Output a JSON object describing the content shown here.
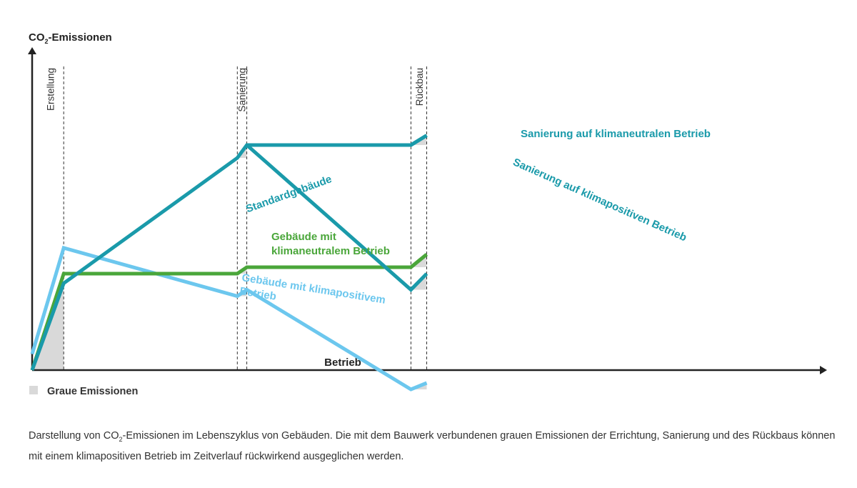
{
  "chart_data": {
    "type": "line",
    "ylabel_pre": "CO",
    "ylabel_sub": "2",
    "ylabel_post": "-Emissionen",
    "xlabel": "Betrieb",
    "phases": [
      "Erstellung",
      "Sanierung",
      "Rückbau"
    ],
    "legend": "Graue Emissionen",
    "colors": {
      "standard": "#1a9aaa",
      "neutral": "#4aa63a",
      "positive": "#6cc7ee",
      "grey": "#d9d9d9",
      "axis": "#222222"
    },
    "series": [
      {
        "name": "Standardgebäude",
        "color": "#1a9aaa",
        "x": [
          0,
          1,
          6.5,
          6.8,
          12,
          12.5
        ],
        "y": [
          0,
          2.7,
          6.6,
          7.0,
          7.0,
          7.3
        ]
      },
      {
        "name": "Sanierung auf klimaneutralen Betrieb",
        "color": "#1a9aaa",
        "x": [
          6.8,
          12,
          12.5
        ],
        "y": [
          7.0,
          7.0,
          7.3
        ]
      },
      {
        "name": "Sanierung auf klimapositiven Betrieb",
        "color": "#1a9aaa",
        "x": [
          6.8,
          12,
          12.5
        ],
        "y": [
          7.0,
          2.5,
          3.0
        ]
      },
      {
        "name": "Gebäude mit klimaneutralem Betrieb",
        "color": "#4aa63a",
        "x": [
          0,
          1,
          6.5,
          6.8,
          12,
          12.5
        ],
        "y": [
          0,
          3.0,
          3.0,
          3.2,
          3.2,
          3.6
        ]
      },
      {
        "name": "Gebäude mit klimapositivem Betrieb",
        "color": "#6cc7ee",
        "x": [
          0,
          1,
          6.5,
          6.8,
          12,
          12.5
        ],
        "y": [
          0.5,
          3.8,
          2.3,
          2.5,
          -0.6,
          -0.4
        ]
      }
    ],
    "labels": [
      {
        "lines": [
          "Standardgebäude"
        ],
        "color": "#1a9aaa"
      },
      {
        "lines": [
          "Sanierung auf klimaneutralen Betrieb"
        ],
        "color": "#1a9aaa"
      },
      {
        "lines": [
          "Sanierung auf klimapositiven Betrieb"
        ],
        "color": "#1a9aaa"
      },
      {
        "lines": [
          "Gebäude mit",
          "klimaneutralem Betrieb"
        ],
        "color": "#4aa63a"
      },
      {
        "lines": [
          "Gebäude mit klimapositivem",
          "Betrieb"
        ],
        "color": "#6cc7ee"
      }
    ]
  },
  "caption": {
    "part1": "Darstellung von CO",
    "sub": "2",
    "part2": "-Emissionen im Lebenszyklus von Gebäuden. Die mit dem Bauwerk verbundenen grauen Emissionen der Errichtung, Sanierung und des Rückbaus können mit einem klimapositiven Betrieb im Zeitverlauf rückwirkend ausgeglichen werden."
  }
}
